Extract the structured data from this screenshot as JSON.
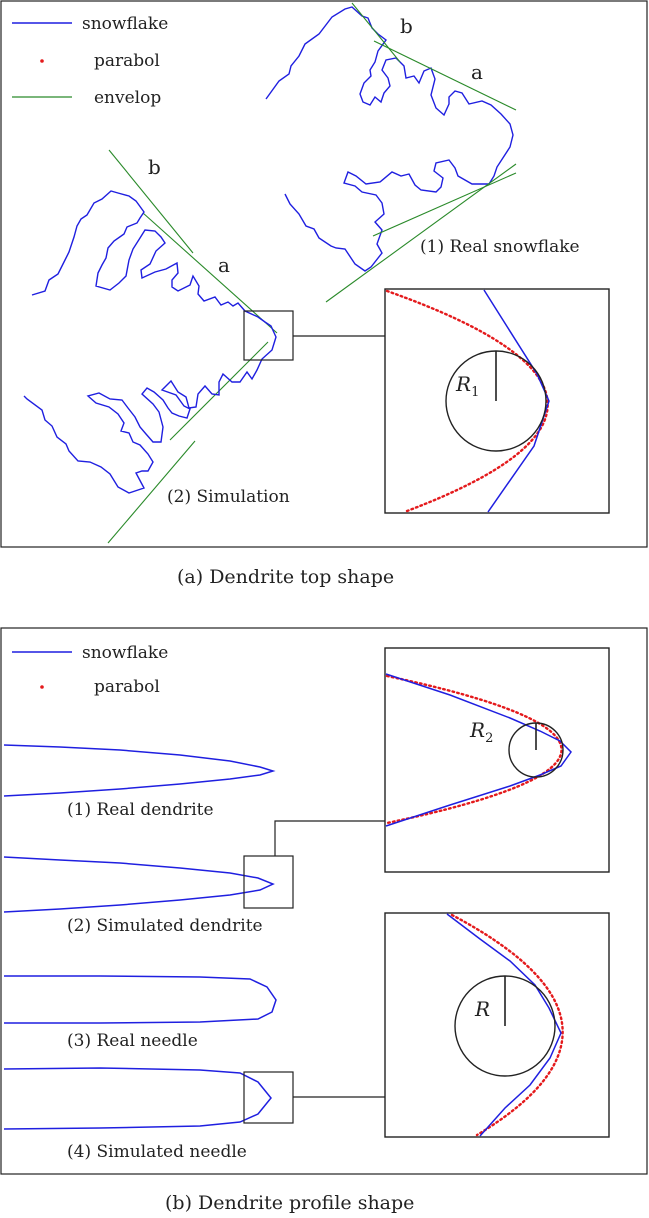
{
  "panel_a": {
    "legend": {
      "snowflake": "snowflake",
      "parabol": "parabol",
      "envelop": "envelop"
    },
    "labels": {
      "b_top": "b",
      "a_top": "a",
      "b_left": "b",
      "a_left": "a",
      "real_snowflake": "(1)  Real snowflake",
      "simulation": "(2)  Simulation",
      "radius": "R",
      "radius_sub": "1"
    },
    "caption": "(a)    Dendrite top shape"
  },
  "panel_b": {
    "legend": {
      "snowflake": "snowflake",
      "parabol": "parabol"
    },
    "labels": {
      "real_dendrite": "(1)  Real dendrite",
      "simulated_dendrite": "(2)  Simulated dendrite",
      "real_needle": "(3)  Real needle",
      "simulated_needle": "(4)  Simulated needle",
      "radius2": "R",
      "radius2_sub": "2",
      "radius": "R"
    },
    "caption": "(b)  Dendrite profile shape"
  },
  "colors": {
    "snowflake": "#1f1fe0",
    "parabol": "#e41a1c",
    "envelop": "#2a8a2a",
    "frame": "#222222"
  }
}
